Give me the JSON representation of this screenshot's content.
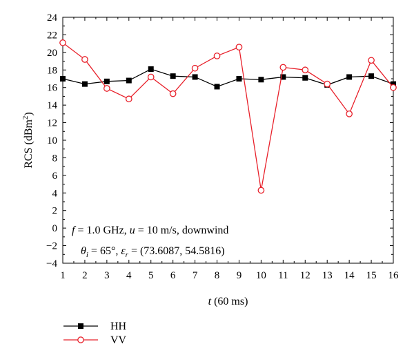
{
  "chart_data": {
    "type": "line",
    "x": [
      1,
      2,
      3,
      4,
      5,
      6,
      7,
      8,
      9,
      10,
      11,
      12,
      13,
      14,
      15,
      16
    ],
    "xlim": [
      1,
      16
    ],
    "ylim": [
      -4,
      24
    ],
    "x_ticks": [
      "1",
      "2",
      "3",
      "4",
      "5",
      "6",
      "7",
      "8",
      "9",
      "10",
      "11",
      "12",
      "13",
      "14",
      "15",
      "16"
    ],
    "y_ticks": [
      "24",
      "22",
      "20",
      "18",
      "16",
      "14",
      "12",
      "10",
      "8",
      "6",
      "4",
      "2",
      "0",
      "−2",
      "−4"
    ],
    "ylabel": {
      "main": "RCS (dBm",
      "sup": "2",
      "close": ")"
    },
    "xlabel": {
      "var": "t",
      "unit": " (60 ms)"
    },
    "annotation_line1": {
      "f": "f",
      "eq1": " = 1.0 GHz, ",
      "u": "u",
      "eq2": " = 10 m/s, downwind"
    },
    "annotation_line2": {
      "theta": "θ",
      "theta_sub": "i",
      "eq1": " = 65°, ",
      "eps": "ε",
      "eps_sub": "r",
      "eq2": " = (73.6087, 54.5816)"
    },
    "series": [
      {
        "name": "HH",
        "color": "#000000",
        "marker": "filled-square",
        "values": [
          17.0,
          16.4,
          16.7,
          16.8,
          18.1,
          17.3,
          17.2,
          16.1,
          17.0,
          16.9,
          17.2,
          17.1,
          16.3,
          17.2,
          17.3,
          16.4
        ]
      },
      {
        "name": "VV",
        "color": "#e8202a",
        "marker": "open-circle",
        "values": [
          21.1,
          19.2,
          15.9,
          14.7,
          17.2,
          15.3,
          18.2,
          19.6,
          20.6,
          4.3,
          18.3,
          18.0,
          16.4,
          13.0,
          19.1,
          16.0
        ]
      }
    ],
    "legend": {
      "position": "bottom-left"
    }
  }
}
